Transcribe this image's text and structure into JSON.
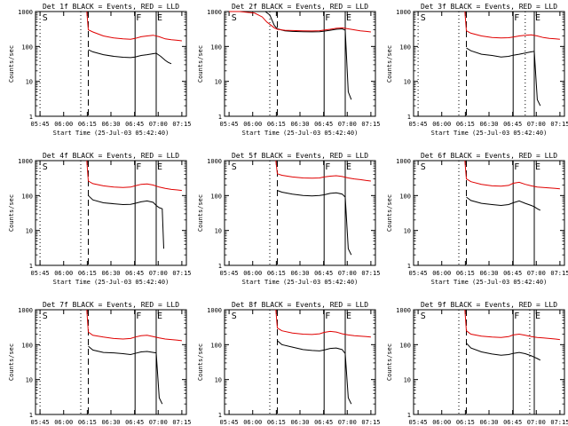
{
  "figure": {
    "xlabel": "Start Time (25-Jul-03 05:42:40)",
    "ylabel": "Counts/sec",
    "legend_note": "BLACK = Events, RED = LLD",
    "colors": {
      "events": "#000000",
      "lld": "#e00000",
      "axes": "#000000"
    }
  },
  "chart_data": [
    {
      "type": "line",
      "title": "Det 1f BLACK = Events, RED = LLD",
      "xlabel": "Start Time (25-Jul-03 05:42:40)",
      "ylabel": "Counts/sec",
      "y_scale": "log",
      "ylim": [
        1,
        1000
      ],
      "y_ticks": [
        1,
        10,
        100,
        1000
      ],
      "x_ticks": [
        "05:45",
        "06:00",
        "06:15",
        "06:30",
        "06:45",
        "07:00",
        "07:15"
      ],
      "xlim_min": [
        3,
        97
      ],
      "markers": {
        "S": 4,
        "F": 66,
        "E": 80
      },
      "lines": {
        "dotted": [
          3,
          30
        ],
        "dashed": [
          35
        ],
        "solid": [
          66,
          80
        ]
      },
      "series": [
        {
          "name": "Events",
          "color": "#000000",
          "x": [
            35,
            38,
            45,
            52,
            58,
            63,
            66,
            70,
            74,
            78,
            80,
            83,
            86,
            88,
            90
          ],
          "y": [
            80,
            70,
            58,
            52,
            49,
            48,
            50,
            55,
            58,
            62,
            64,
            52,
            40,
            35,
            32
          ]
        },
        {
          "name": "LLD",
          "color": "#e00000",
          "x": [
            34,
            35,
            38,
            45,
            52,
            58,
            63,
            66,
            70,
            74,
            78,
            82,
            86,
            90,
            94,
            97
          ],
          "y": [
            1000,
            300,
            260,
            200,
            175,
            165,
            160,
            170,
            190,
            200,
            210,
            190,
            165,
            155,
            150,
            145
          ]
        }
      ]
    },
    {
      "type": "line",
      "title": "Det 2f BLACK = Events, RED = LLD",
      "xlabel": "Start Time (25-Jul-03 05:42:40)",
      "ylabel": "Counts/sec",
      "y_scale": "log",
      "ylim": [
        1,
        1000
      ],
      "y_ticks": [
        1,
        10,
        100,
        1000
      ],
      "x_ticks": [
        "05:45",
        "06:00",
        "06:15",
        "06:30",
        "06:45",
        "07:00",
        "07:15"
      ],
      "xlim_min": [
        3,
        97
      ],
      "markers": {
        "S": 4,
        "F": 66,
        "E": 80
      },
      "lines": {
        "dotted": [
          30
        ],
        "dashed": [
          35
        ],
        "solid": [
          66,
          80
        ]
      },
      "series": [
        {
          "name": "Events",
          "color": "#000000",
          "x": [
            27,
            30,
            33,
            35,
            40,
            45,
            52,
            58,
            63,
            66,
            70,
            74,
            78,
            80,
            82,
            84
          ],
          "y": [
            1000,
            800,
            400,
            320,
            280,
            270,
            265,
            262,
            265,
            275,
            290,
            310,
            320,
            290,
            5,
            3
          ]
        },
        {
          "name": "LLD",
          "color": "#e00000",
          "x": [
            3,
            10,
            20,
            25,
            28,
            31,
            33,
            35,
            40,
            45,
            52,
            58,
            63,
            66,
            70,
            74,
            78,
            82,
            86,
            90,
            94,
            97
          ],
          "y": [
            1000,
            1000,
            900,
            700,
            500,
            400,
            340,
            310,
            290,
            285,
            280,
            278,
            282,
            295,
            310,
            330,
            340,
            320,
            300,
            280,
            270,
            260
          ]
        }
      ]
    },
    {
      "type": "line",
      "title": "Det 3f BLACK = Events, RED = LLD",
      "xlabel": "Start Time (25-Jul-03 05:42:40)",
      "ylabel": "Counts/sec",
      "y_scale": "log",
      "ylim": [
        1,
        1000
      ],
      "y_ticks": [
        1,
        10,
        100,
        1000
      ],
      "x_ticks": [
        "05:45",
        "06:00",
        "06:15",
        "06:30",
        "06:45",
        "07:00",
        "07:15"
      ],
      "xlim_min": [
        3,
        97
      ],
      "markers": {
        "S": 4,
        "F": 66,
        "E": 80
      },
      "lines": {
        "dotted": [
          3,
          30,
          74
        ],
        "dashed": [
          35
        ],
        "solid": [
          66,
          80
        ]
      },
      "series": [
        {
          "name": "Events",
          "color": "#000000",
          "x": [
            35,
            38,
            45,
            52,
            58,
            63,
            66,
            70,
            74,
            78,
            80,
            82,
            84
          ],
          "y": [
            90,
            75,
            60,
            55,
            50,
            52,
            56,
            60,
            65,
            70,
            72,
            3,
            2
          ]
        },
        {
          "name": "LLD",
          "color": "#e00000",
          "x": [
            34,
            35,
            38,
            45,
            52,
            58,
            63,
            66,
            70,
            74,
            78,
            82,
            86,
            90,
            94,
            97
          ],
          "y": [
            1000,
            280,
            240,
            200,
            180,
            175,
            178,
            185,
            200,
            210,
            215,
            200,
            180,
            170,
            165,
            160
          ]
        }
      ]
    },
    {
      "type": "line",
      "title": "Det 4f BLACK = Events, RED = LLD",
      "xlabel": "Start Time (25-Jul-03 05:42:40)",
      "ylabel": "Counts/sec",
      "y_scale": "log",
      "ylim": [
        1,
        1000
      ],
      "y_ticks": [
        1,
        10,
        100,
        1000
      ],
      "x_ticks": [
        "05:45",
        "06:00",
        "06:15",
        "06:30",
        "06:45",
        "07:00",
        "07:15"
      ],
      "xlim_min": [
        3,
        97
      ],
      "markers": {
        "S": 4,
        "F": 66,
        "E": 80
      },
      "lines": {
        "dotted": [
          3,
          30
        ],
        "dashed": [
          35
        ],
        "solid": [
          66,
          80
        ]
      },
      "series": [
        {
          "name": "Events",
          "color": "#000000",
          "x": [
            35,
            38,
            45,
            52,
            58,
            63,
            66,
            70,
            74,
            78,
            80,
            82,
            84,
            85
          ],
          "y": [
            100,
            75,
            62,
            58,
            55,
            56,
            60,
            66,
            70,
            64,
            52,
            45,
            42,
            3
          ]
        },
        {
          "name": "LLD",
          "color": "#e00000",
          "x": [
            34,
            35,
            38,
            45,
            52,
            58,
            63,
            66,
            70,
            74,
            78,
            82,
            86,
            90,
            94,
            97
          ],
          "y": [
            1000,
            260,
            220,
            190,
            175,
            170,
            175,
            190,
            210,
            215,
            200,
            175,
            160,
            150,
            145,
            140
          ]
        }
      ]
    },
    {
      "type": "line",
      "title": "Det 5f BLACK = Events, RED = LLD",
      "xlabel": "Start Time (25-Jul-03 05:42:40)",
      "ylabel": "Counts/sec",
      "y_scale": "log",
      "ylim": [
        1,
        1000
      ],
      "y_ticks": [
        1,
        10,
        100,
        1000
      ],
      "x_ticks": [
        "05:45",
        "06:00",
        "06:15",
        "06:30",
        "06:45",
        "07:00",
        "07:15"
      ],
      "xlim_min": [
        3,
        97
      ],
      "markers": {
        "S": 4,
        "F": 66,
        "E": 80
      },
      "lines": {
        "dotted": [
          30
        ],
        "dashed": [
          35
        ],
        "solid": [
          66,
          80
        ]
      },
      "series": [
        {
          "name": "Events",
          "color": "#000000",
          "x": [
            35,
            38,
            45,
            52,
            58,
            63,
            66,
            70,
            74,
            78,
            80,
            82,
            84
          ],
          "y": [
            140,
            125,
            110,
            100,
            98,
            100,
            105,
            115,
            120,
            110,
            90,
            3,
            2
          ]
        },
        {
          "name": "LLD",
          "color": "#e00000",
          "x": [
            34,
            35,
            38,
            45,
            52,
            58,
            63,
            66,
            70,
            74,
            78,
            82,
            86,
            90,
            94,
            97
          ],
          "y": [
            1000,
            420,
            380,
            340,
            320,
            315,
            320,
            340,
            360,
            370,
            350,
            320,
            300,
            285,
            270,
            260
          ]
        }
      ]
    },
    {
      "type": "line",
      "title": "Det 6f BLACK = Events, RED = LLD",
      "xlabel": "Start Time (25-Jul-03 05:42:40)",
      "ylabel": "Counts/sec",
      "y_scale": "log",
      "ylim": [
        1,
        1000
      ],
      "y_ticks": [
        1,
        10,
        100,
        1000
      ],
      "x_ticks": [
        "05:45",
        "06:00",
        "06:15",
        "06:30",
        "06:45",
        "07:00",
        "07:15"
      ],
      "xlim_min": [
        3,
        97
      ],
      "markers": {
        "S": 4,
        "F": 66,
        "E": 80
      },
      "lines": {
        "dotted": [
          30
        ],
        "dashed": [
          35
        ],
        "solid": [
          66,
          80
        ]
      },
      "series": [
        {
          "name": "Events",
          "color": "#000000",
          "x": [
            35,
            38,
            45,
            52,
            58,
            63,
            66,
            70,
            74,
            78,
            80,
            82,
            84
          ],
          "y": [
            90,
            72,
            60,
            55,
            52,
            55,
            62,
            70,
            60,
            52,
            48,
            42,
            38
          ]
        },
        {
          "name": "LLD",
          "color": "#e00000",
          "x": [
            34,
            35,
            38,
            45,
            52,
            58,
            63,
            66,
            70,
            74,
            78,
            82,
            86,
            90,
            94,
            97
          ],
          "y": [
            1000,
            300,
            250,
            210,
            190,
            185,
            195,
            225,
            240,
            210,
            190,
            175,
            170,
            165,
            160,
            155
          ]
        }
      ]
    },
    {
      "type": "line",
      "title": "Det 7f BLACK = Events, RED = LLD",
      "xlabel": "Start Time (25-Jul-03 05:42:40)",
      "ylabel": "Counts/sec",
      "y_scale": "log",
      "ylim": [
        1,
        1000
      ],
      "y_ticks": [
        1,
        10,
        100,
        1000
      ],
      "x_ticks": [
        "05:45",
        "06:00",
        "06:15",
        "06:30",
        "06:45",
        "07:00",
        "07:15"
      ],
      "xlim_min": [
        3,
        97
      ],
      "markers": {
        "S": 4,
        "F": 66,
        "E": 80
      },
      "lines": {
        "dotted": [
          3,
          30
        ],
        "dashed": [
          35
        ],
        "solid": [
          66,
          80
        ]
      },
      "series": [
        {
          "name": "Events",
          "color": "#000000",
          "x": [
            35,
            38,
            45,
            52,
            58,
            63,
            66,
            70,
            74,
            78,
            80,
            82,
            84
          ],
          "y": [
            90,
            70,
            60,
            58,
            55,
            52,
            56,
            62,
            64,
            60,
            58,
            3,
            2
          ]
        },
        {
          "name": "LLD",
          "color": "#e00000",
          "x": [
            34,
            35,
            38,
            45,
            52,
            58,
            63,
            66,
            70,
            74,
            78,
            82,
            86,
            90,
            94,
            97
          ],
          "y": [
            1000,
            230,
            185,
            165,
            150,
            145,
            150,
            165,
            180,
            185,
            170,
            155,
            145,
            140,
            135,
            130
          ]
        }
      ]
    },
    {
      "type": "line",
      "title": "Det 8f BLACK = Events, RED = LLD",
      "xlabel": "Start Time (25-Jul-03 05:42:40)",
      "ylabel": "Counts/sec",
      "y_scale": "log",
      "ylim": [
        1,
        1000
      ],
      "y_ticks": [
        1,
        10,
        100,
        1000
      ],
      "x_ticks": [
        "05:45",
        "06:00",
        "06:15",
        "06:30",
        "06:45",
        "07:00",
        "07:15"
      ],
      "xlim_min": [
        3,
        97
      ],
      "markers": {
        "S": 4,
        "F": 66,
        "E": 80
      },
      "lines": {
        "dotted": [
          30
        ],
        "dashed": [
          35
        ],
        "solid": [
          66,
          80
        ]
      },
      "series": [
        {
          "name": "Events",
          "color": "#000000",
          "x": [
            35,
            38,
            45,
            52,
            58,
            63,
            66,
            70,
            74,
            78,
            80,
            82,
            84
          ],
          "y": [
            130,
            100,
            85,
            72,
            68,
            66,
            70,
            78,
            80,
            72,
            55,
            3,
            2
          ]
        },
        {
          "name": "LLD",
          "color": "#e00000",
          "x": [
            34,
            35,
            38,
            45,
            52,
            58,
            63,
            66,
            70,
            74,
            78,
            82,
            86,
            90,
            94,
            97
          ],
          "y": [
            1000,
            300,
            250,
            215,
            200,
            195,
            205,
            225,
            240,
            230,
            205,
            190,
            180,
            175,
            170,
            165
          ]
        }
      ]
    },
    {
      "type": "line",
      "title": "Det 9f BLACK = Events, RED = LLD",
      "xlabel": "Start Time (25-Jul-03 05:42:40)",
      "ylabel": "Counts/sec",
      "y_scale": "log",
      "ylim": [
        1,
        1000
      ],
      "y_ticks": [
        1,
        10,
        100,
        1000
      ],
      "x_ticks": [
        "05:45",
        "06:00",
        "06:15",
        "06:30",
        "06:45",
        "07:00",
        "07:15"
      ],
      "xlim_min": [
        3,
        97
      ],
      "markers": {
        "S": 4,
        "F": 66,
        "E": 80
      },
      "lines": {
        "dotted": [
          30,
          77
        ],
        "dashed": [
          35
        ],
        "solid": [
          66,
          80
        ]
      },
      "series": [
        {
          "name": "Events",
          "color": "#000000",
          "x": [
            35,
            38,
            45,
            52,
            58,
            63,
            66,
            70,
            74,
            78,
            80,
            82,
            84
          ],
          "y": [
            110,
            80,
            62,
            54,
            50,
            52,
            56,
            60,
            55,
            48,
            44,
            40,
            36
          ]
        },
        {
          "name": "LLD",
          "color": "#e00000",
          "x": [
            34,
            35,
            38,
            45,
            52,
            58,
            63,
            66,
            70,
            74,
            78,
            82,
            86,
            90,
            94,
            97
          ],
          "y": [
            1000,
            250,
            200,
            175,
            165,
            160,
            170,
            190,
            200,
            185,
            170,
            160,
            155,
            150,
            145,
            140
          ]
        }
      ]
    }
  ]
}
